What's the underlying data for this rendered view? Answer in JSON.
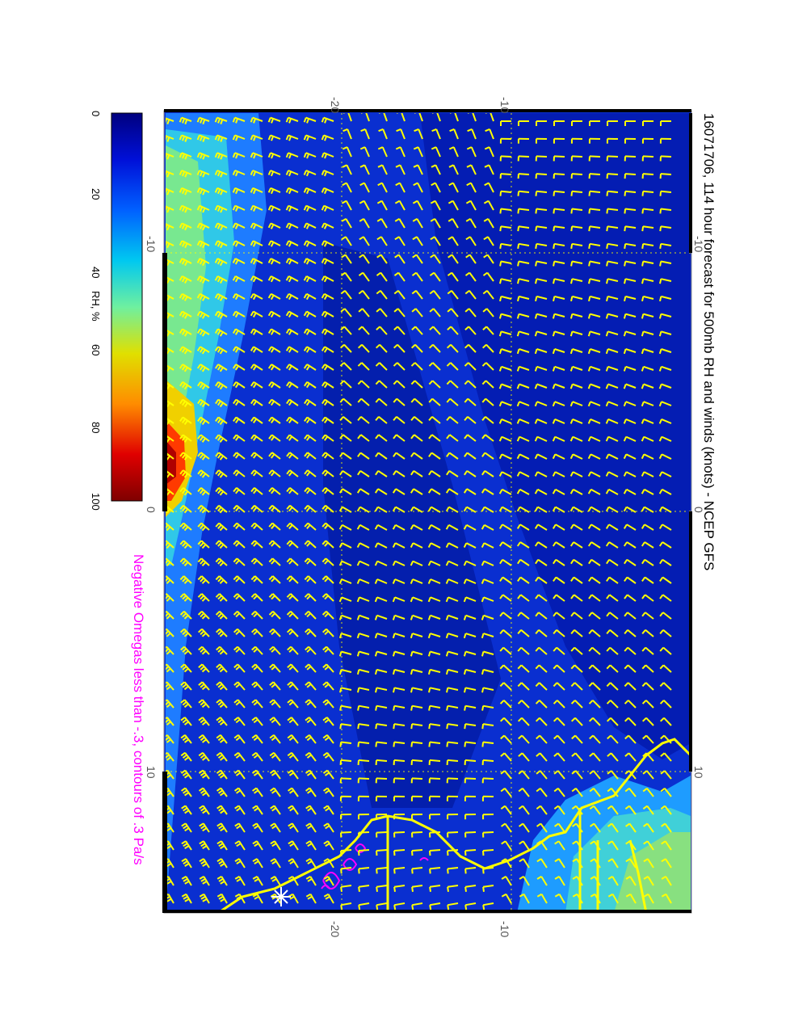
{
  "title": "16071706, 114 hour forecast for 500mb RH and winds (knots) - NCEP GFS",
  "caption": "Negative Omegas less than -.3, contours of .3 Pa/s",
  "colorbar": {
    "label": "RH, %",
    "ticks": [
      "0",
      "20",
      "40",
      "60",
      "80",
      "100"
    ],
    "colors": [
      "#00007f",
      "#0038ff",
      "#00d0ff",
      "#8cff6e",
      "#ffd400",
      "#ff3000",
      "#7f0000"
    ]
  },
  "axes": {
    "longitude_ticks_top": [
      "-20",
      "-10"
    ],
    "longitude_ticks_bottom": [
      "-20",
      "-10"
    ],
    "latitude_ticks_left": [
      "-10",
      "0",
      "10"
    ],
    "latitude_ticks_right": [
      "-10",
      "0",
      "10"
    ]
  },
  "colors": {
    "barb": "#ffff00",
    "coast": "#ffff00",
    "omega": "#ff00ff",
    "ocean_deep": "#000f9a",
    "ocean": "#0a2fd0"
  }
}
